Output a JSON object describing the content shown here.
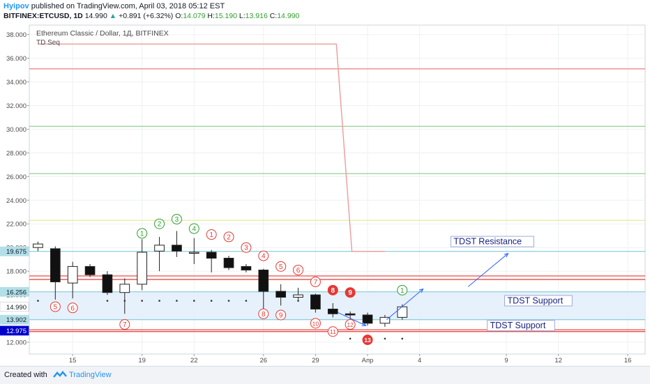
{
  "header": {
    "author": "Hyipov",
    "published_text": "published on TradingView.com, April 03, 2018 05:12 EST",
    "symbol_text": "BITFINEX:ETCUSD, 1D",
    "last_price": "14.990",
    "change_text": "+0.891 (+6.32%)",
    "o_label": "O:",
    "o_value": "14.079",
    "h_label": "H:",
    "h_value": "15.190",
    "l_label": "L:",
    "l_value": "13.916",
    "c_label": "C:",
    "c_value": "14.990"
  },
  "legend": {
    "title": "Ethereum Classic / Dollar, 1Д, BITFINEX",
    "indicator": "TD Seq"
  },
  "y_ticks": [
    "12.000",
    "14.000",
    "16.000",
    "18.000",
    "20.000",
    "22.000",
    "24.000",
    "26.000",
    "28.000",
    "30.000",
    "32.000",
    "34.000",
    "36.000",
    "38.000"
  ],
  "price_badges": [
    {
      "text": "19.675",
      "value": 19.675,
      "bg": "#b2dfe8",
      "fg": "#131722"
    },
    {
      "text": "16.256",
      "value": 16.256,
      "bg": "#b2dfe8",
      "fg": "#131722"
    },
    {
      "text": "14.990",
      "value": 14.99,
      "bg": "#ffffff",
      "fg": "#131722"
    },
    {
      "text": "13.902",
      "value": 13.902,
      "bg": "#b2dfe8",
      "fg": "#131722"
    },
    {
      "text": "12.975",
      "value": 12.975,
      "bg": "#0000cc",
      "fg": "#ffffff"
    }
  ],
  "x_ticks": [
    {
      "label": "15",
      "day": 15
    },
    {
      "label": "19",
      "day": 19
    },
    {
      "label": "22",
      "day": 22
    },
    {
      "label": "26",
      "day": 26
    },
    {
      "label": "29",
      "day": 29
    },
    {
      "label": "Апр",
      "day": 32
    },
    {
      "label": "4",
      "day": 35
    },
    {
      "label": "9",
      "day": 40
    },
    {
      "label": "12",
      "day": 43
    },
    {
      "label": "16",
      "day": 47
    }
  ],
  "chart_data": {
    "type": "candlestick",
    "title": "Ethereum Classic / Dollar, 1Д, BITFINEX",
    "ylim": [
      11.0,
      38.8
    ],
    "candles": [
      {
        "day": 13,
        "o": 20.0,
        "h": 20.5,
        "l": 19.7,
        "c": 20.3
      },
      {
        "day": 14,
        "o": 19.9,
        "h": 20.1,
        "l": 15.6,
        "c": 17.1
      },
      {
        "day": 15,
        "o": 17.0,
        "h": 18.8,
        "l": 15.7,
        "c": 18.4
      },
      {
        "day": 16,
        "o": 18.4,
        "h": 18.6,
        "l": 17.5,
        "c": 17.7
      },
      {
        "day": 17,
        "o": 17.7,
        "h": 18.0,
        "l": 16.0,
        "c": 16.2
      },
      {
        "day": 18,
        "o": 16.2,
        "h": 17.4,
        "l": 14.4,
        "c": 16.9
      },
      {
        "day": 19,
        "o": 16.9,
        "h": 20.7,
        "l": 16.4,
        "c": 19.6
      },
      {
        "day": 20,
        "o": 19.7,
        "h": 20.9,
        "l": 18.0,
        "c": 20.2
      },
      {
        "day": 21,
        "o": 20.2,
        "h": 21.4,
        "l": 19.2,
        "c": 19.7
      },
      {
        "day": 22,
        "o": 19.6,
        "h": 20.8,
        "l": 18.6,
        "c": 19.6
      },
      {
        "day": 23,
        "o": 19.6,
        "h": 19.8,
        "l": 17.9,
        "c": 19.1
      },
      {
        "day": 24,
        "o": 19.1,
        "h": 19.3,
        "l": 18.1,
        "c": 18.3
      },
      {
        "day": 25,
        "o": 18.4,
        "h": 18.6,
        "l": 17.9,
        "c": 18.1
      },
      {
        "day": 26,
        "o": 18.1,
        "h": 18.2,
        "l": 14.3,
        "c": 16.3
      },
      {
        "day": 27,
        "o": 16.3,
        "h": 16.9,
        "l": 15.1,
        "c": 15.8
      },
      {
        "day": 28,
        "o": 15.8,
        "h": 16.6,
        "l": 15.6,
        "c": 16.0
      },
      {
        "day": 29,
        "o": 16.0,
        "h": 16.1,
        "l": 14.5,
        "c": 14.8
      },
      {
        "day": 30,
        "o": 14.8,
        "h": 15.3,
        "l": 14.1,
        "c": 14.4
      },
      {
        "day": 31,
        "o": 14.4,
        "h": 14.6,
        "l": 13.6,
        "c": 14.3
      },
      {
        "day": 32,
        "o": 14.3,
        "h": 14.5,
        "l": 13.4,
        "c": 13.6
      },
      {
        "day": 33,
        "o": 13.6,
        "h": 14.3,
        "l": 13.3,
        "c": 14.1
      },
      {
        "day": 34,
        "o": 14.1,
        "h": 15.2,
        "l": 13.9,
        "c": 14.99
      }
    ],
    "levels": [
      {
        "y": 35.1,
        "color": "#e57373",
        "width": 1.2
      },
      {
        "y": 30.25,
        "color": "#66bb6a",
        "width": 0.8
      },
      {
        "y": 26.25,
        "color": "#66bb6a",
        "width": 0.8
      },
      {
        "y": 22.3,
        "color": "#d4e157",
        "width": 0.8
      },
      {
        "y": 17.6,
        "color": "#e53935",
        "width": 1.2
      },
      {
        "y": 17.3,
        "color": "#e53935",
        "width": 1.2
      },
      {
        "y": 13.05,
        "color": "#e53935",
        "width": 1.2
      },
      {
        "y": 12.9,
        "color": "#e53935",
        "width": 1.2
      }
    ],
    "tdst_lines": [
      19.675,
      16.256,
      13.902
    ],
    "support_zone": [
      13.902,
      16.256
    ],
    "resistance_step": [
      {
        "x": 13,
        "y": 37.2
      },
      {
        "x": 30.2,
        "y": 37.2
      },
      {
        "x": 31.1,
        "y": 19.675
      },
      {
        "x": 33,
        "y": 19.675
      }
    ],
    "annotations": [
      {
        "text": "TDST Resistance",
        "day": 36.8,
        "y": 20.3
      },
      {
        "text": "TDST Support",
        "day": 39.9,
        "y": 15.3
      },
      {
        "text": "TDST Support",
        "day": 38.9,
        "y": 13.2
      }
    ],
    "arrows": [
      {
        "from": [
          33.1,
          13.9
        ],
        "to": [
          35.2,
          16.5
        ]
      },
      {
        "from": [
          37.8,
          16.7
        ],
        "to": [
          40.1,
          19.5
        ]
      },
      {
        "from": [
          30.3,
          14.5
        ],
        "to": [
          31.9,
          13.4
        ]
      }
    ],
    "td_counts": [
      {
        "day": 14,
        "label": "5",
        "y": 15.0,
        "color": "#e53935",
        "filled": false
      },
      {
        "day": 15,
        "label": "6",
        "y": 14.9,
        "color": "#e53935",
        "filled": false
      },
      {
        "day": 18,
        "label": "7",
        "y": 13.5,
        "color": "#e53935",
        "filled": false
      },
      {
        "day": 19,
        "label": "1",
        "y": 21.2,
        "color": "#2e9e2e",
        "filled": false
      },
      {
        "day": 20,
        "label": "2",
        "y": 22.0,
        "color": "#2e9e2e",
        "filled": false
      },
      {
        "day": 21,
        "label": "3",
        "y": 22.4,
        "color": "#2e9e2e",
        "filled": false
      },
      {
        "day": 22,
        "label": "4",
        "y": 21.6,
        "color": "#2e9e2e",
        "filled": false
      },
      {
        "day": 23,
        "label": "1",
        "y": 21.1,
        "color": "#e53935",
        "filled": false
      },
      {
        "day": 24,
        "label": "2",
        "y": 20.9,
        "color": "#e53935",
        "filled": false
      },
      {
        "day": 25,
        "label": "3",
        "y": 20.0,
        "color": "#e53935",
        "filled": false
      },
      {
        "day": 26,
        "label": "4",
        "y": 19.3,
        "color": "#e53935",
        "filled": false
      },
      {
        "day": 27,
        "label": "5",
        "y": 18.4,
        "color": "#e53935",
        "filled": false
      },
      {
        "day": 28,
        "label": "6",
        "y": 18.1,
        "color": "#e53935",
        "filled": false
      },
      {
        "day": 29,
        "label": "7",
        "y": 17.1,
        "color": "#e53935",
        "filled": false
      },
      {
        "day": 30,
        "label": "8",
        "y": 16.4,
        "color": "#e53935",
        "filled": true
      },
      {
        "day": 31,
        "label": "9",
        "y": 16.2,
        "color": "#e53935",
        "filled": true
      },
      {
        "day": 26,
        "label": "8",
        "y": 14.4,
        "color": "#e53935",
        "filled": false
      },
      {
        "day": 27,
        "label": "9",
        "y": 14.3,
        "color": "#e53935",
        "filled": false
      },
      {
        "day": 29,
        "label": "10",
        "y": 13.6,
        "color": "#e53935",
        "filled": false
      },
      {
        "day": 30,
        "label": "11",
        "y": 12.9,
        "color": "#e53935",
        "filled": false
      },
      {
        "day": 31,
        "label": "12",
        "y": 13.5,
        "color": "#e53935",
        "filled": false
      },
      {
        "day": 32,
        "label": "13",
        "y": 12.2,
        "color": "#e53935",
        "filled": true
      },
      {
        "day": 34,
        "label": "1",
        "y": 16.4,
        "color": "#2e9e2e",
        "filled": false
      }
    ],
    "dots": [
      {
        "day": 13,
        "y": 15.5
      },
      {
        "day": 17,
        "y": 15.5
      },
      {
        "day": 18,
        "y": 15.5
      },
      {
        "day": 19,
        "y": 15.5
      },
      {
        "day": 20,
        "y": 15.5
      },
      {
        "day": 21,
        "y": 15.5
      },
      {
        "day": 22,
        "y": 15.5
      },
      {
        "day": 23,
        "y": 15.5
      },
      {
        "day": 24,
        "y": 15.5
      },
      {
        "day": 25,
        "y": 15.5
      },
      {
        "day": 28,
        "y": 15.5
      },
      {
        "day": 31,
        "y": 12.3
      },
      {
        "day": 33,
        "y": 12.3
      },
      {
        "day": 34,
        "y": 12.3
      }
    ]
  },
  "footer": {
    "created_with": "Created with",
    "brand": "TradingView"
  }
}
